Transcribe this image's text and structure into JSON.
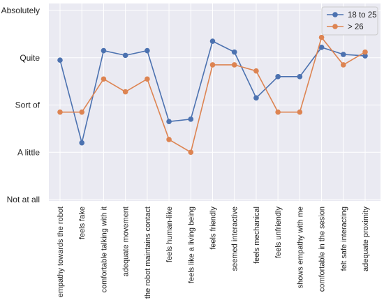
{
  "chart_data": {
    "type": "line",
    "categories": [
      "empathy towards the robot",
      "feels fake",
      "comfortable talking with it",
      "adequate movement",
      "the robot maintains contact",
      "feels human-like",
      "feels like a living being",
      "feels friendly",
      "seemed interactive",
      "feels mechanical",
      "feels unfriendly",
      "shows empathy with me",
      "comfortable in the sesion",
      "felt safe interacting",
      "adequate proximity"
    ],
    "y_tick_labels": [
      "Not at all",
      "A little",
      "Sort of",
      "Quite",
      "Absolutely"
    ],
    "y_tick_values": [
      1,
      2,
      3,
      4,
      5
    ],
    "ylim": [
      1,
      5
    ],
    "grid": true,
    "legend_position": "top-right",
    "series": [
      {
        "name": "18 to 25",
        "color": "#4c72b0",
        "values": [
          3.95,
          2.2,
          4.15,
          4.05,
          4.15,
          2.65,
          2.7,
          4.35,
          4.12,
          3.15,
          3.6,
          3.6,
          4.22,
          4.07,
          4.04
        ]
      },
      {
        "name": "> 26",
        "color": "#dd8452",
        "values": [
          2.85,
          2.85,
          3.55,
          3.28,
          3.55,
          2.27,
          2.0,
          3.85,
          3.85,
          3.72,
          2.85,
          2.85,
          4.43,
          3.85,
          4.12
        ]
      }
    ]
  }
}
